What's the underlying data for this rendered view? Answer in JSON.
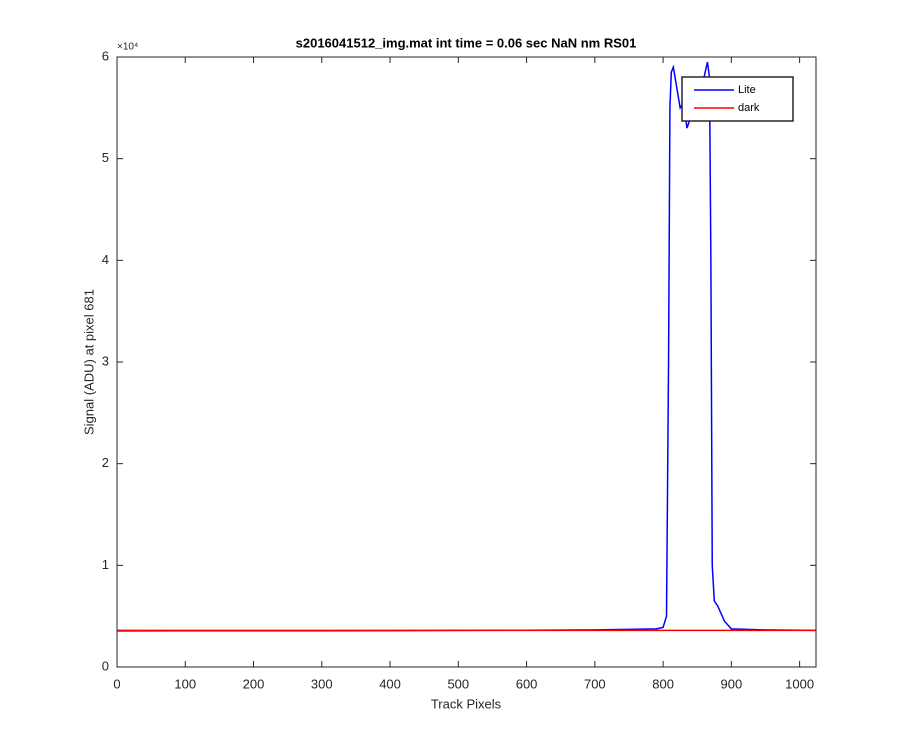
{
  "chart_data": {
    "type": "line",
    "title": "s2016041512_img.mat int time = 0.06 sec  NaN nm RS01",
    "x_label": "Track Pixels",
    "y_label": "Signal (ADU) at pixel 681",
    "y_exponent_label": "×10⁴",
    "xlim": [
      0,
      1024
    ],
    "xticks": [
      0,
      100,
      200,
      300,
      400,
      500,
      600,
      700,
      800,
      900,
      1000
    ],
    "ylim": [
      0,
      60000
    ],
    "yticks": [
      {
        "value": 0,
        "label": "0"
      },
      {
        "value": 10000,
        "label": "1"
      },
      {
        "value": 20000,
        "label": "2"
      },
      {
        "value": 30000,
        "label": "3"
      },
      {
        "value": 40000,
        "label": "4"
      },
      {
        "value": 50000,
        "label": "5"
      },
      {
        "value": 60000,
        "label": "6"
      }
    ],
    "grid": false,
    "legend": "northeast",
    "series": [
      {
        "name": "Lite",
        "color": "#0000ff",
        "x": [
          0,
          100,
          200,
          300,
          400,
          500,
          600,
          700,
          790,
          800,
          805,
          808,
          810,
          812,
          815,
          820,
          825,
          830,
          835,
          840,
          845,
          850,
          855,
          860,
          865,
          868,
          870,
          872,
          875,
          880,
          890,
          900,
          950,
          1024
        ],
        "values": [
          3550,
          3560,
          3560,
          3570,
          3580,
          3600,
          3620,
          3650,
          3750,
          3900,
          5000,
          30000,
          55000,
          58500,
          59000,
          57000,
          55000,
          55500,
          53000,
          54000,
          55500,
          56000,
          57000,
          58000,
          59500,
          58000,
          40000,
          10000,
          6500,
          6000,
          4500,
          3750,
          3650,
          3600
        ]
      },
      {
        "name": "dark",
        "color": "#ff0000",
        "x": [
          0,
          256,
          512,
          768,
          1024
        ],
        "values": [
          3600,
          3600,
          3600,
          3600,
          3600
        ]
      }
    ]
  }
}
